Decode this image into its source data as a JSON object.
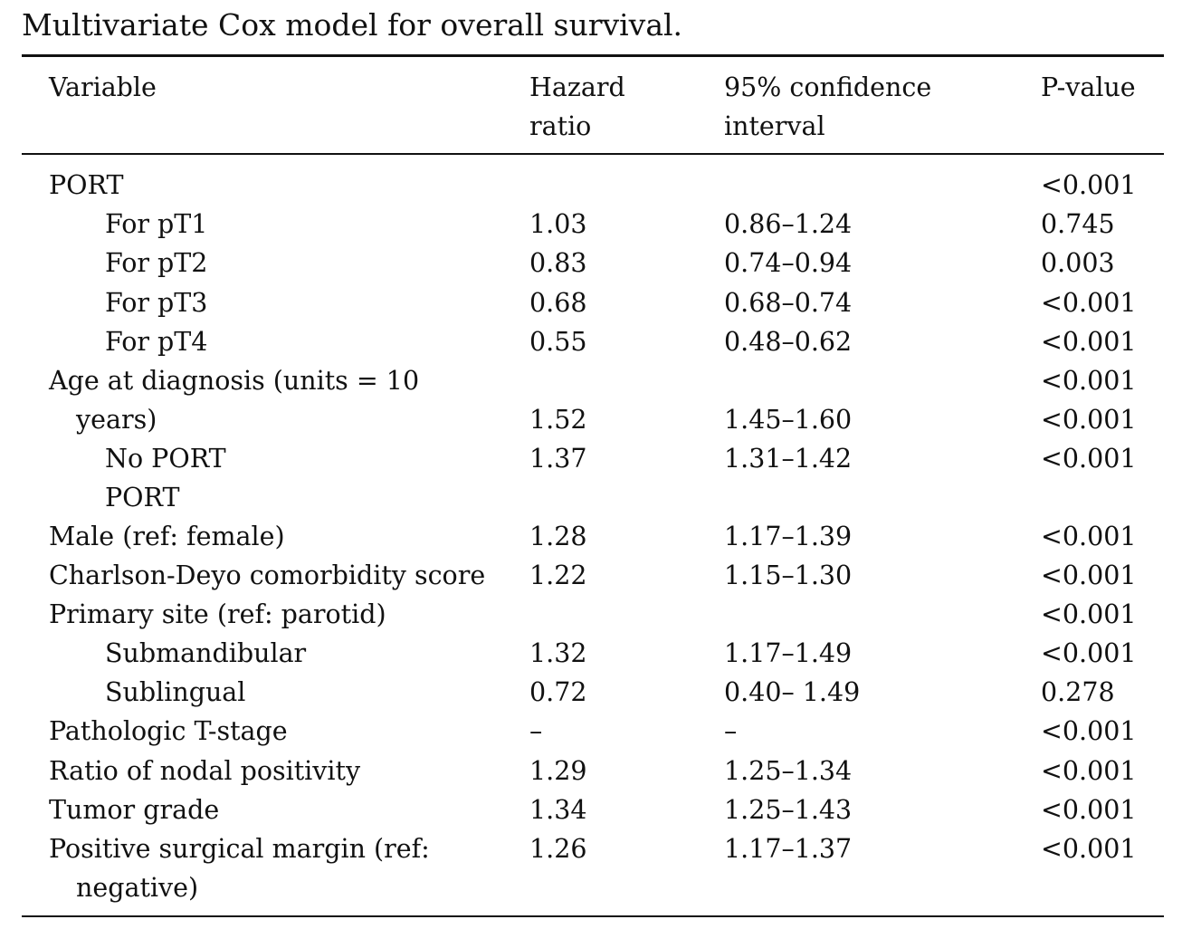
{
  "caption": "Multivariate Cox model for overall survival.",
  "headers": {
    "variable": "Variable",
    "hazard_ratio_1": "Hazard",
    "hazard_ratio_2": "ratio",
    "ci_1": "95% confidence",
    "ci_2": "interval",
    "p_value": "P-value"
  },
  "rows": [
    {
      "variable": "PORT",
      "hr": "",
      "ci": "",
      "p": "<0.001"
    },
    {
      "variable": "For pT1",
      "hr": "1.03",
      "ci": "0.86–1.24",
      "p": "0.745"
    },
    {
      "variable": "For pT2",
      "hr": "0.83",
      "ci": "0.74–0.94",
      "p": "0.003"
    },
    {
      "variable": "For pT3",
      "hr": "0.68",
      "ci": "0.68–0.74",
      "p": "<0.001"
    },
    {
      "variable": "For pT4",
      "hr": "0.55",
      "ci": "0.48–0.62",
      "p": "<0.001"
    },
    {
      "variable": "Age at diagnosis (units = 10",
      "hr": "",
      "ci": "",
      "p": "<0.001"
    },
    {
      "variable": "years)",
      "hr": "1.52",
      "ci": "1.45–1.60",
      "p": "<0.001"
    },
    {
      "variable": "No PORT",
      "hr": "1.37",
      "ci": "1.31–1.42",
      "p": "<0.001"
    },
    {
      "variable": "PORT",
      "hr": "",
      "ci": "",
      "p": ""
    },
    {
      "variable": "Male (ref: female)",
      "hr": "1.28",
      "ci": "1.17–1.39",
      "p": "<0.001"
    },
    {
      "variable": "Charlson-Deyo comorbidity score",
      "hr": "1.22",
      "ci": "1.15–1.30",
      "p": "<0.001"
    },
    {
      "variable": "Primary site (ref: parotid)",
      "hr": "",
      "ci": "",
      "p": "<0.001"
    },
    {
      "variable": "Submandibular",
      "hr": "1.32",
      "ci": "1.17–1.49",
      "p": "<0.001"
    },
    {
      "variable": "Sublingual",
      "hr": "0.72",
      "ci": "0.40– 1.49",
      "p": "0.278"
    },
    {
      "variable": "Pathologic T-stage",
      "hr": "–",
      "ci": "–",
      "p": "<0.001"
    },
    {
      "variable": "Ratio of nodal positivity",
      "hr": "1.29",
      "ci": "1.25–1.34",
      "p": "<0.001"
    },
    {
      "variable": "Tumor grade",
      "hr": "1.34",
      "ci": "1.25–1.43",
      "p": "<0.001"
    },
    {
      "variable": "Positive surgical margin (ref:",
      "hr": "1.26",
      "ci": "1.17–1.37",
      "p": "<0.001"
    },
    {
      "variable": "negative)",
      "hr": "",
      "ci": "",
      "p": ""
    }
  ]
}
